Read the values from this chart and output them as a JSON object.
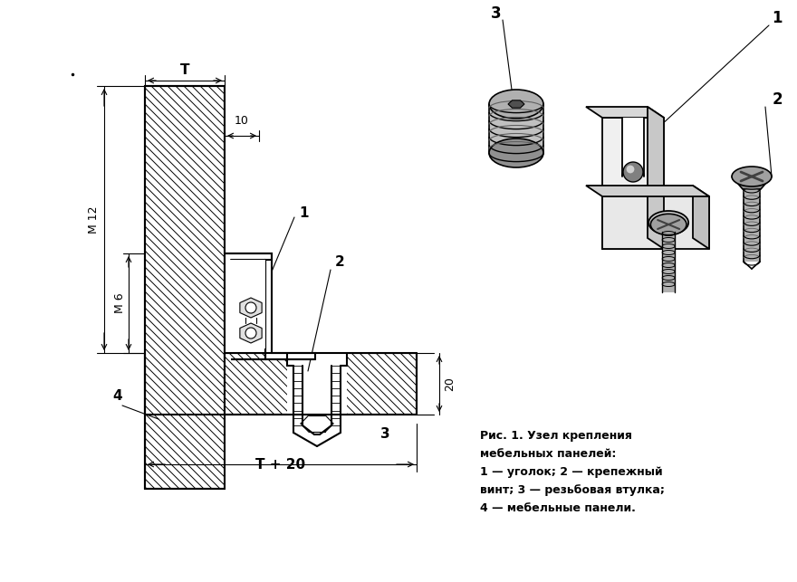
{
  "bg_color": "#ffffff",
  "caption_line1": "Рис. 1. Узел крепления",
  "caption_line2": "мебельных панелей:",
  "caption_line3": "1 — уголок; 2 — крепежный",
  "caption_line4": "винт; 3 — резьбовая втулка;",
  "caption_line5": "4 — мебельные панели.",
  "dim_T": "T",
  "dim_10": "10",
  "dim_M12": "M 12",
  "dim_M6": "M 6",
  "dim_20": "20",
  "dim_T20": "T + 20",
  "figsize": [
    8.8,
    6.43
  ],
  "dpi": 100
}
